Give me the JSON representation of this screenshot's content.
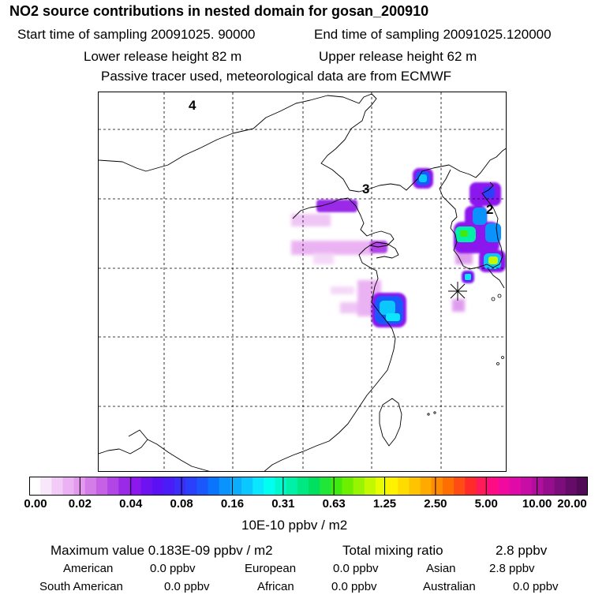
{
  "header": {
    "title": "NO2 source contributions in nested domain for gosan_200910",
    "start_label": "Start time of sampling 20091025. 90000",
    "end_label": "End time of sampling 20091025.120000",
    "lower_label": "Lower release height   82 m",
    "upper_label": "Upper release height   62 m",
    "tracer_note": "Passive tracer used, meteorological data are from ECMWF"
  },
  "map": {
    "region_labels": [
      "4",
      "3",
      "2"
    ],
    "receptor_marker": "receptor-star",
    "grid": "dashed",
    "coastline_color": "#000000"
  },
  "colorbar": {
    "ticks": [
      "0.00",
      "0.02",
      "0.04",
      "0.08",
      "0.16",
      "0.31",
      "0.63",
      "1.25",
      "2.50",
      "5.00",
      "10.00",
      "20.00"
    ],
    "colors": [
      "#ffffff",
      "#f8e6fa",
      "#f2ccf6",
      "#eab2f2",
      "#e499ee",
      "#d47ce8",
      "#c661e6",
      "#b245e6",
      "#9a2ae8",
      "#8c18ee",
      "#6f12f2",
      "#5a12f5",
      "#4a1cf7",
      "#3a2ef8",
      "#2a40fa",
      "#1a58fb",
      "#0a75fc",
      "#0a92fd",
      "#0aaefd",
      "#0ac8fe",
      "#0ae6fe",
      "#00fff0",
      "#00f8cc",
      "#00f0a8",
      "#00e882",
      "#00e060",
      "#20e63a",
      "#40ea10",
      "#6cf000",
      "#98f400",
      "#c4f800",
      "#e8fc00",
      "#fff200",
      "#ffdc00",
      "#ffc400",
      "#ffaa00",
      "#ff8c00",
      "#ff6e00",
      "#ff4c14",
      "#ff2a2a",
      "#ff1a5a",
      "#ff0c84",
      "#f00aa0",
      "#e00aa8",
      "#c80ca6",
      "#b00e9c",
      "#960e8e",
      "#7c0e7c",
      "#640c68",
      "#500a56"
    ],
    "unit": "10E-10 ppbv / m2"
  },
  "summary": {
    "max_label": "Maximum value  0.183E-09 ppbv / m2",
    "total_label": "Total mixing ratio",
    "total_value": "2.8 ppbv",
    "sources": [
      {
        "name": "American",
        "value": "0.0 ppbv"
      },
      {
        "name": "European",
        "value": "0.0 ppbv"
      },
      {
        "name": "Asian",
        "value": "2.8 ppbv"
      },
      {
        "name": "South American",
        "value": "0.0 ppbv"
      },
      {
        "name": "African",
        "value": "0.0 ppbv"
      },
      {
        "name": "Australian",
        "value": "0.0 ppbv"
      }
    ]
  }
}
